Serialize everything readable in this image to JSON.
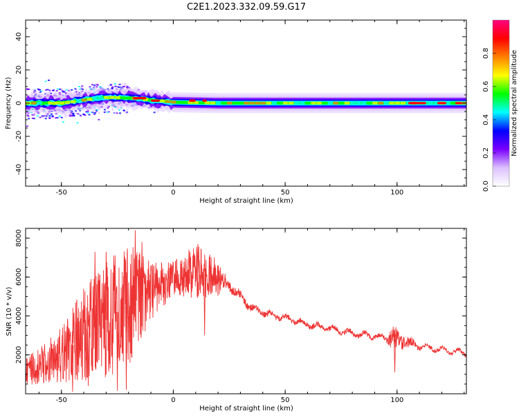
{
  "figure_title": "C2E1.2023.332.09.59.G17",
  "chart_data": [
    {
      "type": "heatmap",
      "name": "spectrogram",
      "xlabel": "Height of straight line (km)",
      "ylabel": "Frequency (Hz)",
      "xlim": [
        -66,
        131
      ],
      "ylim": [
        -50,
        50
      ],
      "xticks": [
        -50,
        0,
        50,
        100
      ],
      "yticks": [
        -40,
        -20,
        0,
        20,
        40
      ],
      "colorbar": {
        "label": "Normalized spectral amplitude",
        "range": [
          0,
          1
        ],
        "ticks": [
          "0.0",
          "0.2",
          "0.4",
          "0.6",
          "0.8"
        ],
        "colormap": [
          "#ffffff",
          "#dcc0ff",
          "#7a00ff",
          "#0000ff",
          "#00ffff",
          "#00ff00",
          "#ffff00",
          "#ff8000",
          "#ff0000",
          "#ff0080"
        ]
      },
      "ridge_frequency": [
        {
          "x": -66,
          "y": 0
        },
        {
          "x": -50,
          "y": 0
        },
        {
          "x": -40,
          "y": 2
        },
        {
          "x": -30,
          "y": 3.5
        },
        {
          "x": -20,
          "y": 3
        },
        {
          "x": -12,
          "y": 2
        },
        {
          "x": -8,
          "y": 1.5
        },
        {
          "x": 0,
          "y": 0.5
        },
        {
          "x": 20,
          "y": 0
        },
        {
          "x": 131,
          "y": 0
        }
      ],
      "peak_segments": [
        {
          "x0": -18,
          "x1": -12,
          "y": 3
        },
        {
          "x0": -10,
          "x1": -6,
          "y": 1.5
        },
        {
          "x0": 7,
          "x1": 10,
          "y": 1.5
        },
        {
          "x0": 13,
          "x1": 15,
          "y": 1.5
        },
        {
          "x0": 105,
          "x1": 113,
          "y": 0
        },
        {
          "x0": 118,
          "x1": 122,
          "y": 0
        },
        {
          "x0": 126,
          "x1": 129,
          "y": 0
        }
      ]
    },
    {
      "type": "line",
      "name": "snr",
      "xlabel": "Height of straight line (km)",
      "ylabel": "SNR (10 * v/v)",
      "xlim": [
        -66,
        131
      ],
      "ylim": [
        0,
        8500
      ],
      "xticks": [
        -50,
        0,
        50,
        100
      ],
      "yticks": [
        2000,
        4000,
        6000,
        8000
      ],
      "color": "#ee3333",
      "envelope_mean": [
        {
          "x": -66,
          "y": 1200
        },
        {
          "x": -60,
          "y": 1400
        },
        {
          "x": -50,
          "y": 2000
        },
        {
          "x": -40,
          "y": 3000
        },
        {
          "x": -30,
          "y": 3800
        },
        {
          "x": -20,
          "y": 4600
        },
        {
          "x": -10,
          "y": 5300
        },
        {
          "x": 0,
          "y": 5900
        },
        {
          "x": 10,
          "y": 6300
        },
        {
          "x": 20,
          "y": 5900
        },
        {
          "x": 25,
          "y": 5600
        },
        {
          "x": 30,
          "y": 5000
        },
        {
          "x": 35,
          "y": 4400
        },
        {
          "x": 40,
          "y": 4200
        },
        {
          "x": 45,
          "y": 4000
        },
        {
          "x": 50,
          "y": 3900
        },
        {
          "x": 55,
          "y": 3750
        },
        {
          "x": 60,
          "y": 3550
        },
        {
          "x": 70,
          "y": 3350
        },
        {
          "x": 80,
          "y": 3100
        },
        {
          "x": 90,
          "y": 2950
        },
        {
          "x": 100,
          "y": 2800
        },
        {
          "x": 110,
          "y": 2450
        },
        {
          "x": 120,
          "y": 2250
        },
        {
          "x": 131,
          "y": 2100
        }
      ],
      "noise_amplitude": [
        {
          "x": -66,
          "y": 700
        },
        {
          "x": -50,
          "y": 1400
        },
        {
          "x": -40,
          "y": 2500
        },
        {
          "x": -30,
          "y": 3000
        },
        {
          "x": -20,
          "y": 3200
        },
        {
          "x": -10,
          "y": 1500
        },
        {
          "x": 0,
          "y": 900
        },
        {
          "x": 10,
          "y": 1400
        },
        {
          "x": 18,
          "y": 1100
        },
        {
          "x": 25,
          "y": 250
        },
        {
          "x": 40,
          "y": 150
        },
        {
          "x": 95,
          "y": 120
        },
        {
          "x": 98,
          "y": 700
        },
        {
          "x": 104,
          "y": 300
        },
        {
          "x": 110,
          "y": 120
        },
        {
          "x": 131,
          "y": 100
        }
      ],
      "peaks": [
        {
          "x": -17,
          "y": 8400
        },
        {
          "x": -14,
          "y": 7800
        },
        {
          "x": -35,
          "y": 7300
        },
        {
          "x": -30,
          "y": 7300
        },
        {
          "x": -26,
          "y": 7100
        },
        {
          "x": 7,
          "y": 7400
        },
        {
          "x": 11,
          "y": 7700
        },
        {
          "x": 21,
          "y": 6500
        },
        {
          "x": 100,
          "y": 3300
        }
      ],
      "dips": [
        {
          "x": -45,
          "y": 100
        },
        {
          "x": -38,
          "y": 400
        },
        {
          "x": -25,
          "y": 150
        },
        {
          "x": -21,
          "y": 200
        },
        {
          "x": 14,
          "y": 3000
        },
        {
          "x": 99,
          "y": 1100
        }
      ]
    }
  ]
}
